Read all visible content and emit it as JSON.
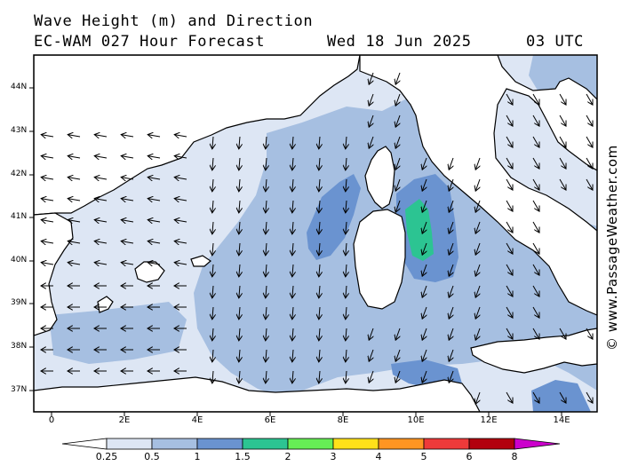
{
  "header": {
    "title_line1": "Wave Height (m) and Direction",
    "title_line2": "EC-WAM 027 Hour Forecast",
    "date": "Wed 18 Jun 2025",
    "time": "03 UTC"
  },
  "credit": "© www.PassageWeather.com",
  "axes": {
    "lat_labels": [
      "44N",
      "43N",
      "42N",
      "41N",
      "40N",
      "39N",
      "38N",
      "37N"
    ],
    "lon_labels": [
      "0",
      "2E",
      "4E",
      "6E",
      "8E",
      "10E",
      "12E",
      "14E"
    ]
  },
  "colorbar": {
    "labels": [
      "0.25",
      "0.5",
      "1",
      "1.5",
      "2",
      "3",
      "4",
      "5",
      "6",
      "8"
    ],
    "colors": [
      "#ffffff",
      "#dde6f4",
      "#a6bfe1",
      "#6a93d0",
      "#2cc492",
      "#66ee55",
      "#ffe11a",
      "#ff9522",
      "#ee3a3a",
      "#b2000e",
      "#cc00cc"
    ]
  },
  "map_colors": {
    "land": "#ffffff",
    "band_0_25_0_5": "#dde6f4",
    "band_0_5_1": "#a6bfe1",
    "band_1_1_5": "#6a93d0",
    "band_1_5_2": "#2cc492"
  }
}
